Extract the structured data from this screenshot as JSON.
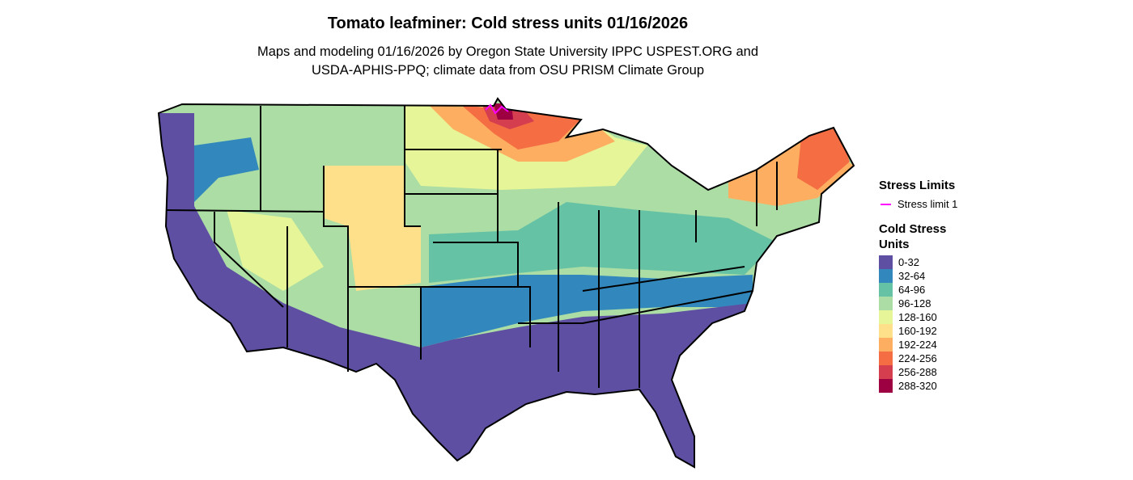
{
  "title": "Tomato leafminer: Cold stress units 01/16/2026",
  "subtitle": [
    "Maps and modeling 01/16/2026 by Oregon State University IPPC USPEST.ORG and",
    "USDA-APHIS-PPQ; climate data from OSU PRISM Climate Group"
  ],
  "legend": {
    "limits_title": "Stress Limits",
    "limits": [
      {
        "label": "Stress limit 1",
        "color": "#ff00ff"
      }
    ],
    "scale_title": "Cold Stress Units",
    "bins": [
      {
        "label": "0-32",
        "color": "#5e4fa2"
      },
      {
        "label": "32-64",
        "color": "#3288bd"
      },
      {
        "label": "64-96",
        "color": "#66c2a5"
      },
      {
        "label": "96-128",
        "color": "#abdda4"
      },
      {
        "label": "128-160",
        "color": "#e6f598"
      },
      {
        "label": "160-192",
        "color": "#fee08b"
      },
      {
        "label": "192-224",
        "color": "#fdae61"
      },
      {
        "label": "224-256",
        "color": "#f46d43"
      },
      {
        "label": "256-288",
        "color": "#d53e4f"
      },
      {
        "label": "288-320",
        "color": "#9e0142"
      }
    ]
  }
}
